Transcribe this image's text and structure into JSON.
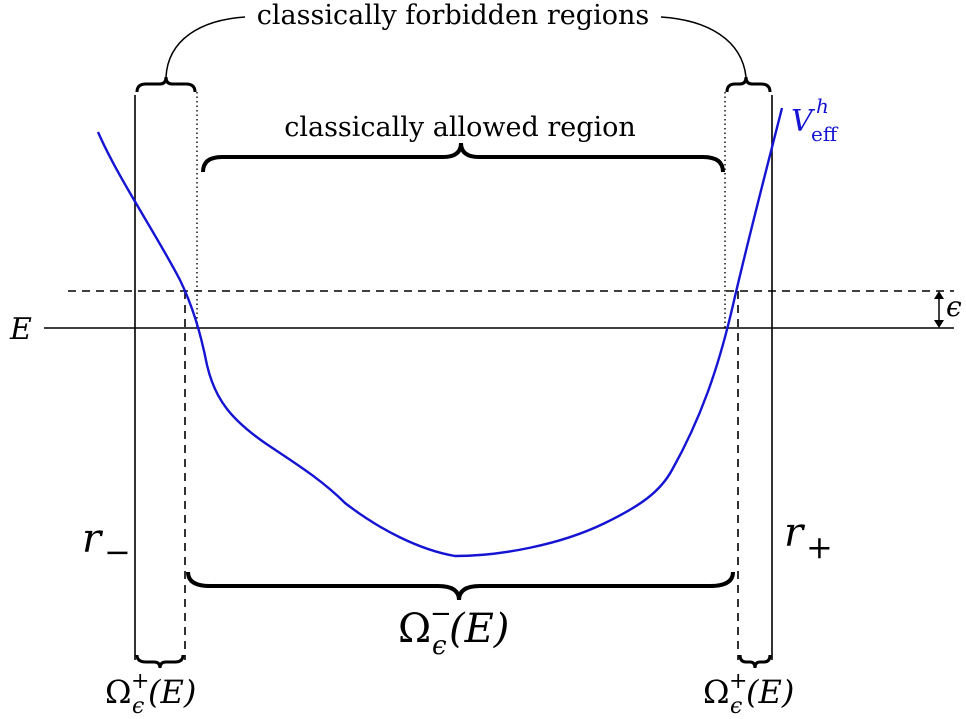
{
  "texts": {
    "forbidden": "classically forbidden regions",
    "allowed": "classically allowed region",
    "energy": "E",
    "epsilon": "ϵ",
    "r_minus_base": "r",
    "r_minus_sub": "−",
    "r_plus_base": "r",
    "r_plus_sub": "+",
    "omega_minus_base": "Ω",
    "omega_minus_sup": "−",
    "omega_minus_sub": "ϵ",
    "omega_minus_arg": "(E)",
    "omega_plus_left_base": "Ω",
    "omega_plus_left_sup": "+",
    "omega_plus_left_sub": "ϵ",
    "omega_plus_left_arg": "(E)",
    "omega_plus_right_base": "Ω",
    "omega_plus_right_sup": "+",
    "omega_plus_right_sub": "ϵ",
    "omega_plus_right_arg": "(E)",
    "veff_base": "V",
    "veff_sup": "h",
    "veff_sub": "eff"
  },
  "colors": {
    "curve": "#1414d2",
    "ink": "#000000"
  }
}
